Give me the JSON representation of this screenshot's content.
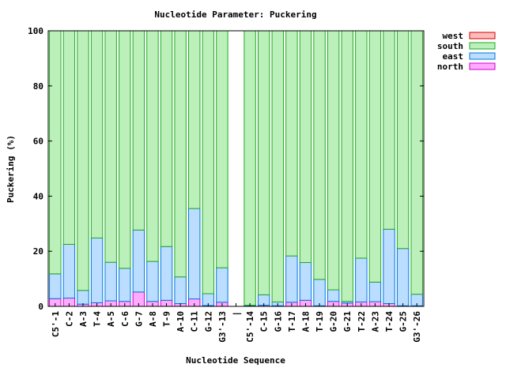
{
  "chart_data": {
    "type": "bar",
    "stacked": true,
    "title": "Nucleotide Parameter: Puckering",
    "xlabel": "Nucleotide Sequence",
    "ylabel": "Puckering (%)",
    "ylim": [
      0,
      100
    ],
    "yticks": [
      0,
      20,
      40,
      60,
      80,
      100
    ],
    "grid": false,
    "legend_position": "right-top",
    "categories": [
      "C5'-1",
      "C-2",
      "A-3",
      "T-4",
      "A-5",
      "C-6",
      "G-7",
      "A-8",
      "T-9",
      "A-10",
      "C-11",
      "G-12",
      "G3'-13",
      "|",
      "C5'-14",
      "C-15",
      "G-16",
      "T-17",
      "A-18",
      "T-19",
      "G-20",
      "G-21",
      "T-22",
      "A-23",
      "T-24",
      "G-25",
      "G3'-26"
    ],
    "series": [
      {
        "name": "north",
        "fill": "#ffaaff",
        "stroke": "#cc00cc",
        "values": [
          2.8,
          3.0,
          0.8,
          1.3,
          2.0,
          1.8,
          5.2,
          1.8,
          2.2,
          1.0,
          2.7,
          0.3,
          1.5,
          0,
          0.2,
          0.4,
          0.2,
          1.5,
          2.2,
          0.2,
          1.8,
          1.2,
          1.6,
          1.7,
          1.0,
          0.2,
          0.2
        ]
      },
      {
        "name": "east",
        "fill": "#bbddff",
        "stroke": "#0077dd",
        "values": [
          9.0,
          19.5,
          5.0,
          23.5,
          14.0,
          12.0,
          22.5,
          14.5,
          19.5,
          9.7,
          32.8,
          4.3,
          12.5,
          0,
          0.2,
          3.8,
          1.4,
          16.8,
          13.7,
          9.6,
          4.2,
          0.6,
          15.9,
          7.1,
          27.0,
          20.8,
          4.2
        ]
      },
      {
        "name": "south",
        "fill": "#bbf0bb",
        "stroke": "#22aa22",
        "values": [
          88.2,
          77.5,
          94.2,
          75.2,
          84.0,
          86.2,
          72.3,
          83.7,
          78.3,
          89.3,
          64.5,
          95.4,
          86.0,
          0,
          99.6,
          95.8,
          98.4,
          81.7,
          84.1,
          90.2,
          94.0,
          98.2,
          82.5,
          91.2,
          72.0,
          79.0,
          95.6
        ]
      },
      {
        "name": "west",
        "fill": "#ffbbbb",
        "stroke": "#cc0000",
        "values": [
          0,
          0,
          0,
          0,
          0,
          0,
          0,
          0,
          0,
          0,
          0,
          0,
          0,
          0,
          0,
          0,
          0,
          0,
          0,
          0,
          0,
          0,
          0,
          0,
          0,
          0,
          0
        ]
      }
    ],
    "legend_order": [
      "west",
      "south",
      "east",
      "north"
    ]
  }
}
